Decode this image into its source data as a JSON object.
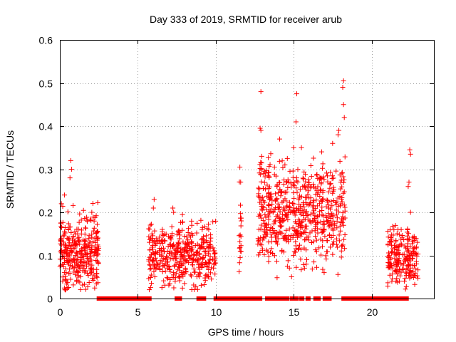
{
  "chart_data": {
    "type": "scatter",
    "title": "Day 333 of 2019, SRMTID for receiver arub",
    "xlabel": "GPS time / hours",
    "ylabel": "SRMTID / TECUs",
    "xlim": [
      0,
      24
    ],
    "ylim": [
      0,
      0.6
    ],
    "xticks": [
      0,
      5,
      10,
      15,
      20
    ],
    "yticks": [
      0,
      0.1,
      0.2,
      0.3,
      0.4,
      0.5,
      0.6
    ],
    "grid": true,
    "marker": "+",
    "color": "#ff0000",
    "segments": [
      {
        "start": 0.0,
        "end": 2.5,
        "mean": 0.11,
        "spread": 0.045,
        "n": 320,
        "spikes": [
          [
            0.7,
            0.32
          ],
          [
            0.75,
            0.3
          ],
          [
            0.65,
            0.28
          ],
          [
            0.1,
            0.22
          ],
          [
            0.3,
            0.24
          ],
          [
            2.05,
            0.2
          ],
          [
            0.35,
            0.02
          ],
          [
            0.2,
            0.05
          ]
        ]
      },
      {
        "start": 5.7,
        "end": 10.0,
        "mean": 0.1,
        "spread": 0.035,
        "n": 420,
        "spikes": [
          [
            6.05,
            0.23
          ],
          [
            6.0,
            0.21
          ],
          [
            7.25,
            0.21
          ],
          [
            7.3,
            0.2
          ],
          [
            9.55,
            0.16
          ],
          [
            7.4,
            0.04
          ],
          [
            8.0,
            0.035
          ]
        ]
      },
      {
        "start": 11.5,
        "end": 11.65,
        "mean": 0.16,
        "spread": 0.06,
        "n": 18,
        "spikes": [
          [
            11.55,
            0.305
          ],
          [
            11.6,
            0.27
          ],
          [
            11.58,
            0.11
          ]
        ]
      },
      {
        "start": 12.7,
        "end": 18.3,
        "mean": 0.2,
        "spread": 0.06,
        "n": 620,
        "spikes": [
          [
            12.9,
            0.48
          ],
          [
            15.2,
            0.475
          ],
          [
            18.2,
            0.505
          ],
          [
            18.15,
            0.49
          ],
          [
            15.15,
            0.41
          ],
          [
            12.85,
            0.395
          ],
          [
            12.9,
            0.39
          ],
          [
            17.9,
            0.39
          ],
          [
            17.85,
            0.38
          ],
          [
            18.25,
            0.42
          ],
          [
            18.2,
            0.45
          ],
          [
            17.5,
            0.36
          ],
          [
            15.5,
            0.35
          ],
          [
            14.1,
            0.37
          ],
          [
            12.95,
            0.33
          ],
          [
            15.0,
            0.35
          ],
          [
            14.6,
            0.075
          ],
          [
            16.3,
            0.085
          ]
        ]
      },
      {
        "start": 21.0,
        "end": 23.0,
        "mean": 0.1,
        "spread": 0.03,
        "n": 210,
        "spikes": [
          [
            22.45,
            0.345
          ],
          [
            22.5,
            0.335
          ],
          [
            22.4,
            0.27
          ],
          [
            22.35,
            0.26
          ],
          [
            22.5,
            0.2
          ],
          [
            21.9,
            0.16
          ],
          [
            21.3,
            0.04
          ],
          [
            22.1,
            0.04
          ]
        ]
      }
    ],
    "zero_intervals": [
      [
        2.5,
        5.75
      ],
      [
        7.5,
        7.7
      ],
      [
        8.9,
        9.25
      ],
      [
        10.0,
        11.5
      ],
      [
        11.6,
        12.85
      ],
      [
        13.3,
        13.35
      ],
      [
        13.5,
        13.55
      ],
      [
        13.7,
        13.75
      ],
      [
        13.9,
        13.95
      ],
      [
        14.1,
        14.15
      ],
      [
        14.3,
        14.35
      ],
      [
        14.5,
        14.6
      ],
      [
        14.9,
        14.95
      ],
      [
        15.15,
        15.2
      ],
      [
        15.5,
        15.55
      ],
      [
        15.9,
        15.95
      ],
      [
        16.4,
        16.6
      ],
      [
        17.0,
        17.3
      ],
      [
        18.2,
        20.9
      ],
      [
        21.05,
        21.15
      ],
      [
        21.4,
        21.5
      ],
      [
        21.65,
        21.7
      ],
      [
        21.9,
        22.0
      ],
      [
        22.15,
        22.25
      ]
    ]
  }
}
